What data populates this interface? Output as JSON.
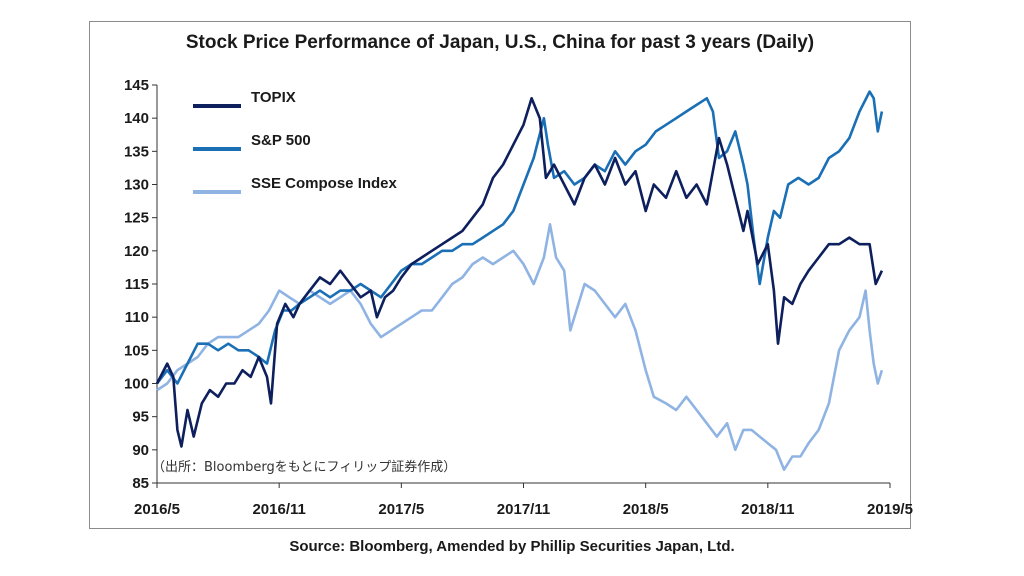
{
  "chart_data": {
    "type": "line",
    "title": "Stock Price Performance of Japan, U.S., China for past 3 years (Daily)",
    "source": "Source: Bloomberg, Amended by Phillip Securities Japan, Ltd.",
    "annotation": "（出所：Bloombergをもとにフィリップ証券作成）",
    "ylim": [
      85,
      145
    ],
    "y_ticks": [
      85,
      90,
      95,
      100,
      105,
      110,
      115,
      120,
      125,
      130,
      135,
      140,
      145
    ],
    "x_ticks": [
      "2016/5",
      "2016/11",
      "2017/5",
      "2017/11",
      "2018/5",
      "2018/11",
      "2019/5"
    ],
    "xlim": [
      0,
      36
    ],
    "legend_position": "top-left",
    "grid": false,
    "series": [
      {
        "name": "TOPIX",
        "color": "#0d1f5c",
        "points": [
          [
            0,
            100
          ],
          [
            0.5,
            103
          ],
          [
            0.8,
            101
          ],
          [
            1.0,
            93
          ],
          [
            1.2,
            90.5
          ],
          [
            1.5,
            96
          ],
          [
            1.8,
            92
          ],
          [
            2.2,
            97
          ],
          [
            2.6,
            99
          ],
          [
            3.0,
            98
          ],
          [
            3.4,
            100
          ],
          [
            3.8,
            100
          ],
          [
            4.2,
            102
          ],
          [
            4.6,
            101
          ],
          [
            5.0,
            104
          ],
          [
            5.4,
            101
          ],
          [
            5.6,
            97
          ],
          [
            5.9,
            109
          ],
          [
            6.3,
            112
          ],
          [
            6.7,
            110
          ],
          [
            7.0,
            112
          ],
          [
            7.5,
            114
          ],
          [
            8.0,
            116
          ],
          [
            8.5,
            115
          ],
          [
            9.0,
            117
          ],
          [
            9.5,
            115
          ],
          [
            10.0,
            113
          ],
          [
            10.5,
            114
          ],
          [
            10.8,
            110
          ],
          [
            11.2,
            113
          ],
          [
            11.6,
            114
          ],
          [
            12.0,
            116
          ],
          [
            12.5,
            118
          ],
          [
            13.0,
            119
          ],
          [
            13.5,
            120
          ],
          [
            14.0,
            121
          ],
          [
            14.5,
            122
          ],
          [
            15.0,
            123
          ],
          [
            15.5,
            125
          ],
          [
            16.0,
            127
          ],
          [
            16.5,
            131
          ],
          [
            17.0,
            133
          ],
          [
            17.5,
            136
          ],
          [
            18.0,
            139
          ],
          [
            18.4,
            143
          ],
          [
            18.8,
            140
          ],
          [
            19.1,
            131
          ],
          [
            19.5,
            133
          ],
          [
            20.0,
            130
          ],
          [
            20.5,
            127
          ],
          [
            21.0,
            131
          ],
          [
            21.5,
            133
          ],
          [
            22.0,
            130
          ],
          [
            22.5,
            134
          ],
          [
            23.0,
            130
          ],
          [
            23.5,
            132
          ],
          [
            24.0,
            126
          ],
          [
            24.4,
            130
          ],
          [
            25.0,
            128
          ],
          [
            25.5,
            132
          ],
          [
            26.0,
            128
          ],
          [
            26.5,
            130
          ],
          [
            27.0,
            127
          ],
          [
            27.3,
            132
          ],
          [
            27.6,
            137
          ],
          [
            28.0,
            133
          ],
          [
            28.4,
            128
          ],
          [
            28.8,
            123
          ],
          [
            29.0,
            126
          ],
          [
            29.5,
            118
          ],
          [
            30.0,
            121
          ],
          [
            30.3,
            114
          ],
          [
            30.5,
            106
          ],
          [
            30.8,
            113
          ],
          [
            31.2,
            112
          ],
          [
            31.6,
            115
          ],
          [
            32.0,
            117
          ],
          [
            32.5,
            119
          ],
          [
            33.0,
            121
          ],
          [
            33.5,
            121
          ],
          [
            34.0,
            122
          ],
          [
            34.5,
            121
          ],
          [
            35.0,
            121
          ],
          [
            35.3,
            115
          ],
          [
            35.6,
            117
          ]
        ]
      },
      {
        "name": "S&P 500",
        "color": "#1a6fb5",
        "points": [
          [
            0,
            100
          ],
          [
            0.5,
            102
          ],
          [
            1.0,
            100
          ],
          [
            1.5,
            103
          ],
          [
            2.0,
            106
          ],
          [
            2.5,
            106
          ],
          [
            3.0,
            105
          ],
          [
            3.5,
            106
          ],
          [
            4.0,
            105
          ],
          [
            4.5,
            105
          ],
          [
            5.0,
            104
          ],
          [
            5.4,
            103
          ],
          [
            5.8,
            108
          ],
          [
            6.2,
            111
          ],
          [
            6.6,
            111
          ],
          [
            7.0,
            112
          ],
          [
            7.5,
            113
          ],
          [
            8.0,
            114
          ],
          [
            8.5,
            113
          ],
          [
            9.0,
            114
          ],
          [
            9.5,
            114
          ],
          [
            10.0,
            115
          ],
          [
            10.5,
            114
          ],
          [
            11.0,
            113
          ],
          [
            11.5,
            115
          ],
          [
            12.0,
            117
          ],
          [
            12.5,
            118
          ],
          [
            13.0,
            118
          ],
          [
            13.5,
            119
          ],
          [
            14.0,
            120
          ],
          [
            14.5,
            120
          ],
          [
            15.0,
            121
          ],
          [
            15.5,
            121
          ],
          [
            16.0,
            122
          ],
          [
            16.5,
            123
          ],
          [
            17.0,
            124
          ],
          [
            17.5,
            126
          ],
          [
            18.0,
            130
          ],
          [
            18.5,
            134
          ],
          [
            19.0,
            140
          ],
          [
            19.2,
            136
          ],
          [
            19.5,
            131
          ],
          [
            20.0,
            132
          ],
          [
            20.5,
            130
          ],
          [
            21.0,
            131
          ],
          [
            21.5,
            133
          ],
          [
            22.0,
            132
          ],
          [
            22.5,
            135
          ],
          [
            23.0,
            133
          ],
          [
            23.5,
            135
          ],
          [
            24.0,
            136
          ],
          [
            24.5,
            138
          ],
          [
            25.0,
            139
          ],
          [
            25.5,
            140
          ],
          [
            26.0,
            141
          ],
          [
            26.5,
            142
          ],
          [
            27.0,
            143
          ],
          [
            27.3,
            141
          ],
          [
            27.6,
            134
          ],
          [
            28.0,
            135
          ],
          [
            28.4,
            138
          ],
          [
            28.8,
            133
          ],
          [
            29.0,
            130
          ],
          [
            29.3,
            122
          ],
          [
            29.6,
            115
          ],
          [
            30.0,
            122
          ],
          [
            30.3,
            126
          ],
          [
            30.6,
            125
          ],
          [
            31.0,
            130
          ],
          [
            31.5,
            131
          ],
          [
            32.0,
            130
          ],
          [
            32.5,
            131
          ],
          [
            33.0,
            134
          ],
          [
            33.5,
            135
          ],
          [
            34.0,
            137
          ],
          [
            34.5,
            141
          ],
          [
            35.0,
            144
          ],
          [
            35.2,
            143
          ],
          [
            35.4,
            138
          ],
          [
            35.6,
            141
          ]
        ]
      },
      {
        "name": "SSE Compose Index",
        "color": "#8fb4e3",
        "points": [
          [
            0,
            99
          ],
          [
            0.5,
            100
          ],
          [
            1.0,
            102
          ],
          [
            1.5,
            103
          ],
          [
            2.0,
            104
          ],
          [
            2.5,
            106
          ],
          [
            3.0,
            107
          ],
          [
            3.5,
            107
          ],
          [
            4.0,
            107
          ],
          [
            4.5,
            108
          ],
          [
            5.0,
            109
          ],
          [
            5.5,
            111
          ],
          [
            6.0,
            114
          ],
          [
            6.5,
            113
          ],
          [
            7.0,
            112
          ],
          [
            7.5,
            114
          ],
          [
            8.0,
            113
          ],
          [
            8.5,
            112
          ],
          [
            9.0,
            113
          ],
          [
            9.5,
            114
          ],
          [
            10.0,
            112
          ],
          [
            10.5,
            109
          ],
          [
            11.0,
            107
          ],
          [
            11.5,
            108
          ],
          [
            12.0,
            109
          ],
          [
            12.5,
            110
          ],
          [
            13.0,
            111
          ],
          [
            13.5,
            111
          ],
          [
            14.0,
            113
          ],
          [
            14.5,
            115
          ],
          [
            15.0,
            116
          ],
          [
            15.5,
            118
          ],
          [
            16.0,
            119
          ],
          [
            16.5,
            118
          ],
          [
            17.0,
            119
          ],
          [
            17.5,
            120
          ],
          [
            18.0,
            118
          ],
          [
            18.5,
            115
          ],
          [
            19.0,
            119
          ],
          [
            19.3,
            124
          ],
          [
            19.6,
            119
          ],
          [
            20.0,
            117
          ],
          [
            20.3,
            108
          ],
          [
            20.6,
            111
          ],
          [
            21.0,
            115
          ],
          [
            21.5,
            114
          ],
          [
            22.0,
            112
          ],
          [
            22.5,
            110
          ],
          [
            23.0,
            112
          ],
          [
            23.5,
            108
          ],
          [
            24.0,
            102
          ],
          [
            24.4,
            98
          ],
          [
            25.0,
            97
          ],
          [
            25.5,
            96
          ],
          [
            26.0,
            98
          ],
          [
            26.5,
            96
          ],
          [
            27.0,
            94
          ],
          [
            27.5,
            92
          ],
          [
            28.0,
            94
          ],
          [
            28.4,
            90
          ],
          [
            28.8,
            93
          ],
          [
            29.2,
            93
          ],
          [
            29.6,
            92
          ],
          [
            30.0,
            91
          ],
          [
            30.4,
            90
          ],
          [
            30.8,
            87
          ],
          [
            31.2,
            89
          ],
          [
            31.6,
            89
          ],
          [
            32.0,
            91
          ],
          [
            32.5,
            93
          ],
          [
            33.0,
            97
          ],
          [
            33.5,
            105
          ],
          [
            34.0,
            108
          ],
          [
            34.5,
            110
          ],
          [
            34.8,
            114
          ],
          [
            35.0,
            108
          ],
          [
            35.2,
            103
          ],
          [
            35.4,
            100
          ],
          [
            35.6,
            102
          ]
        ]
      }
    ]
  }
}
